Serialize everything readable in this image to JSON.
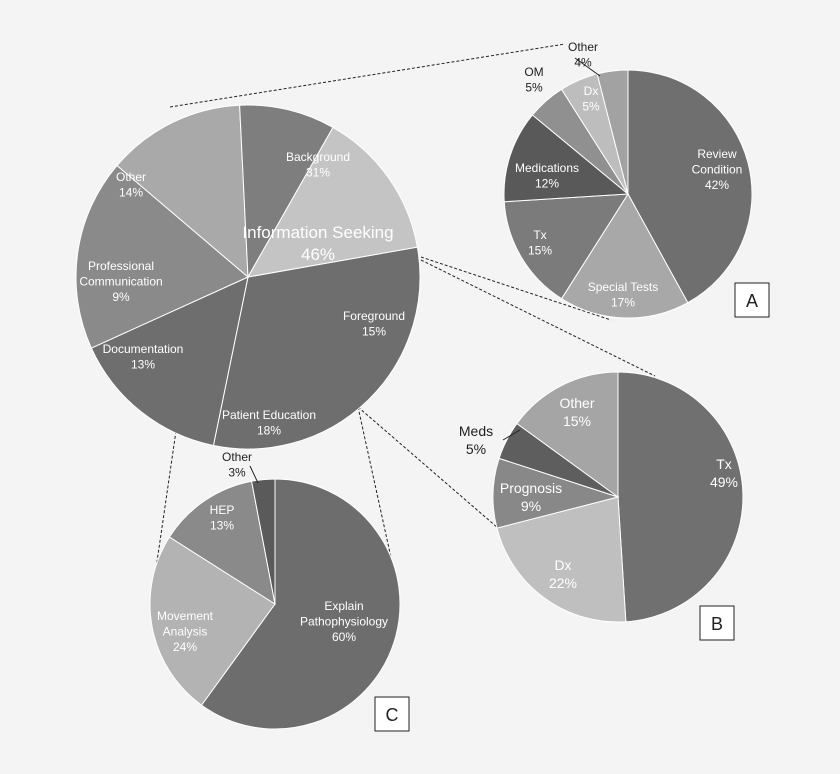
{
  "chart_data": [
    {
      "id": "main",
      "type": "pie",
      "slices": [
        {
          "label": "Background",
          "value": 31,
          "pct": "31%",
          "color": "#6e6e6e"
        },
        {
          "label": "Foreground",
          "value": 15,
          "pct": "15%",
          "color": "#6e6e6e"
        },
        {
          "label": "Patient Education",
          "value": 18,
          "pct": "18%",
          "color": "#8a8a8a"
        },
        {
          "label": "Documentation",
          "value": 13,
          "pct": "13%",
          "color": "#a9a9a9"
        },
        {
          "label": "Professional\nCommunication",
          "value": 9,
          "pct": "9%",
          "color": "#7e7e7e"
        },
        {
          "label": "Other",
          "value": 14,
          "pct": "14%",
          "color": "#c4c4c4"
        }
      ],
      "group_label": {
        "label": "Information Seeking",
        "pct": "46%"
      }
    },
    {
      "id": "A",
      "panel": "A",
      "type": "pie",
      "slices": [
        {
          "label": "Review\nCondition",
          "value": 42,
          "pct": "42%",
          "color": "#6f6f6f"
        },
        {
          "label": "Special Tests",
          "value": 17,
          "pct": "17%",
          "color": "#a8a8a8"
        },
        {
          "label": "Tx",
          "value": 15,
          "pct": "15%",
          "color": "#7b7b7b"
        },
        {
          "label": "Medications",
          "value": 12,
          "pct": "12%",
          "color": "#595959"
        },
        {
          "label": "OM",
          "value": 5,
          "pct": "5%",
          "color": "#909090"
        },
        {
          "label": "Dx",
          "value": 5,
          "pct": "5%",
          "color": "#bdbdbd"
        },
        {
          "label": "Other",
          "value": 4,
          "pct": "4%",
          "color": "#a2a2a2"
        }
      ]
    },
    {
      "id": "B",
      "panel": "B",
      "type": "pie",
      "slices": [
        {
          "label": "Tx",
          "value": 49,
          "pct": "49%",
          "color": "#707070"
        },
        {
          "label": "Dx",
          "value": 22,
          "pct": "22%",
          "color": "#bfbfbf"
        },
        {
          "label": "Prognosis",
          "value": 9,
          "pct": "9%",
          "color": "#888888"
        },
        {
          "label": "Meds",
          "value": 5,
          "pct": "5%",
          "color": "#5e5e5e"
        },
        {
          "label": "Other",
          "value": 15,
          "pct": "15%",
          "color": "#a5a5a5"
        }
      ]
    },
    {
      "id": "C",
      "panel": "C",
      "type": "pie",
      "slices": [
        {
          "label": "Explain\nPathophysiology",
          "value": 60,
          "pct": "60%",
          "color": "#6d6d6d"
        },
        {
          "label": "Movement\nAnalysis",
          "value": 24,
          "pct": "24%",
          "color": "#b3b3b3"
        },
        {
          "label": "HEP",
          "value": 13,
          "pct": "13%",
          "color": "#8a8a8a"
        },
        {
          "label": "Other",
          "value": 3,
          "pct": "3%",
          "color": "#5a5a5a"
        }
      ]
    }
  ]
}
